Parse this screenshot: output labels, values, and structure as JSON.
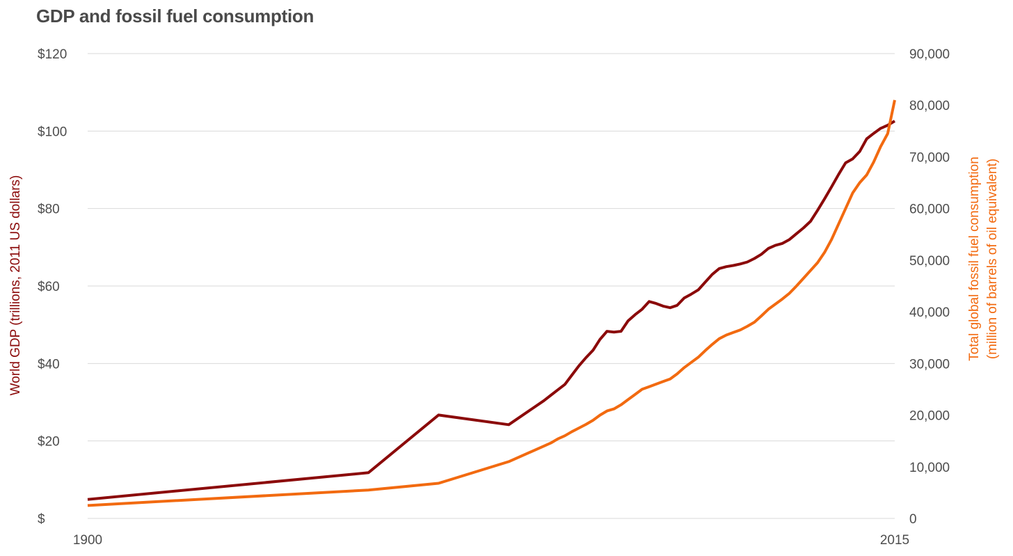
{
  "chart_data": {
    "type": "line",
    "title": "GDP and fossil fuel consumption",
    "xlabel": "",
    "x_ticks": [
      "1900",
      "2015"
    ],
    "xlim": [
      1900,
      2015
    ],
    "y_left": {
      "label": "World GDP (trillions, 2011 US dollars)",
      "lim": [
        0,
        120
      ],
      "ticks": [
        0,
        20,
        40,
        60,
        80,
        100,
        120
      ],
      "tick_labels": [
        "$",
        "$20",
        "$40",
        "$60",
        "$80",
        "$100",
        "$120"
      ],
      "color": "#8b0a0a"
    },
    "y_right": {
      "label_lines": [
        "Total global fossil fuel consumption",
        "(million of barrels of oil equivalent)"
      ],
      "lim": [
        0,
        90000
      ],
      "ticks": [
        0,
        10000,
        20000,
        30000,
        40000,
        50000,
        60000,
        70000,
        80000,
        90000
      ],
      "tick_labels": [
        "0",
        "10,000",
        "20,000",
        "30,000",
        "40,000",
        "50,000",
        "60,000",
        "70,000",
        "80,000",
        "90,000"
      ],
      "color": "#f26a10"
    },
    "grid": true,
    "series": [
      {
        "name": "World GDP (trillions, 2011 US dollars)",
        "axis": "left",
        "color": "#8b0a0a",
        "points": [
          [
            1900,
            4.9
          ],
          [
            1940,
            11.8
          ],
          [
            1950,
            26.7
          ],
          [
            1960,
            24.2
          ],
          [
            1965,
            30.4
          ],
          [
            1966,
            31.8
          ],
          [
            1967,
            33.2
          ],
          [
            1968,
            34.6
          ],
          [
            1969,
            37.0
          ],
          [
            1970,
            39.4
          ],
          [
            1971,
            41.5
          ],
          [
            1972,
            43.4
          ],
          [
            1973,
            46.2
          ],
          [
            1974,
            48.3
          ],
          [
            1975,
            48.1
          ],
          [
            1976,
            48.3
          ],
          [
            1977,
            51.0
          ],
          [
            1978,
            52.6
          ],
          [
            1979,
            54.0
          ],
          [
            1980,
            56.0
          ],
          [
            1981,
            55.5
          ],
          [
            1982,
            54.8
          ],
          [
            1983,
            54.4
          ],
          [
            1984,
            55.0
          ],
          [
            1985,
            56.9
          ],
          [
            1986,
            57.9
          ],
          [
            1987,
            59.0
          ],
          [
            1988,
            61.0
          ],
          [
            1989,
            63.0
          ],
          [
            1990,
            64.5
          ],
          [
            1991,
            65.0
          ],
          [
            1992,
            65.3
          ],
          [
            1993,
            65.7
          ],
          [
            1994,
            66.2
          ],
          [
            1995,
            67.1
          ],
          [
            1996,
            68.2
          ],
          [
            1997,
            69.7
          ],
          [
            1998,
            70.5
          ],
          [
            1999,
            71.0
          ],
          [
            2000,
            72.0
          ],
          [
            2001,
            73.5
          ],
          [
            2002,
            75.0
          ],
          [
            2003,
            76.7
          ],
          [
            2004,
            79.5
          ],
          [
            2005,
            82.5
          ],
          [
            2006,
            85.6
          ],
          [
            2007,
            88.8
          ],
          [
            2008,
            91.8
          ],
          [
            2009,
            92.8
          ],
          [
            2010,
            94.7
          ],
          [
            2011,
            98.0
          ],
          [
            2012,
            99.4
          ],
          [
            2013,
            100.7
          ],
          [
            2014,
            101.5
          ],
          [
            2015,
            102.6
          ]
        ]
      },
      {
        "name": "Total global fossil fuel consumption (million of barrels of oil equivalent)",
        "axis": "right",
        "color": "#f26a10",
        "points": [
          [
            1900,
            2500
          ],
          [
            1940,
            5500
          ],
          [
            1950,
            6800
          ],
          [
            1960,
            11000
          ],
          [
            1965,
            14000
          ],
          [
            1966,
            14600
          ],
          [
            1967,
            15400
          ],
          [
            1968,
            16000
          ],
          [
            1969,
            16800
          ],
          [
            1970,
            17500
          ],
          [
            1971,
            18200
          ],
          [
            1972,
            19000
          ],
          [
            1973,
            20000
          ],
          [
            1974,
            20800
          ],
          [
            1975,
            21200
          ],
          [
            1976,
            22000
          ],
          [
            1977,
            23000
          ],
          [
            1978,
            24000
          ],
          [
            1979,
            25000
          ],
          [
            1980,
            25500
          ],
          [
            1981,
            26000
          ],
          [
            1982,
            26500
          ],
          [
            1983,
            27000
          ],
          [
            1984,
            28000
          ],
          [
            1985,
            29200
          ],
          [
            1986,
            30200
          ],
          [
            1987,
            31200
          ],
          [
            1988,
            32500
          ],
          [
            1989,
            33700
          ],
          [
            1990,
            34800
          ],
          [
            1991,
            35500
          ],
          [
            1992,
            36000
          ],
          [
            1993,
            36500
          ],
          [
            1994,
            37200
          ],
          [
            1995,
            38000
          ],
          [
            1996,
            39200
          ],
          [
            1997,
            40500
          ],
          [
            1998,
            41500
          ],
          [
            1999,
            42500
          ],
          [
            2000,
            43600
          ],
          [
            2001,
            45000
          ],
          [
            2002,
            46500
          ],
          [
            2003,
            48000
          ],
          [
            2004,
            49500
          ],
          [
            2005,
            51500
          ],
          [
            2006,
            54000
          ],
          [
            2007,
            57000
          ],
          [
            2008,
            60000
          ],
          [
            2009,
            63000
          ],
          [
            2010,
            65000
          ],
          [
            2011,
            66500
          ],
          [
            2012,
            69000
          ],
          [
            2013,
            72000
          ],
          [
            2014,
            74500
          ],
          [
            2015,
            81000
          ]
        ]
      }
    ]
  }
}
